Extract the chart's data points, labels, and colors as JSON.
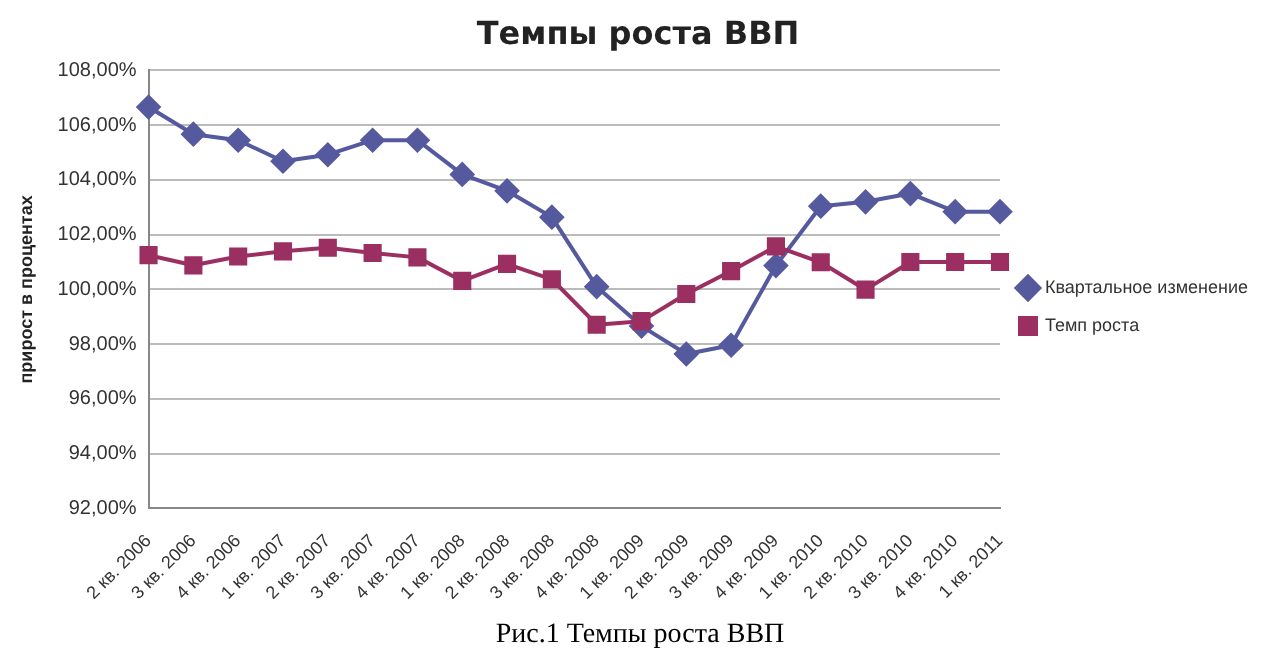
{
  "chart_data": {
    "type": "line",
    "title": "Темпы роста ВВП",
    "ylabel": "прирост в процентах",
    "categories": [
      "2 кв. 2006",
      "3 кв. 2006",
      "4 кв. 2006",
      "1 кв. 2007",
      "2 кв. 2007",
      "3 кв. 2007",
      "4 кв. 2007",
      "1 кв. 2008",
      "2 кв. 2008",
      "3 кв. 2008",
      "4 кв. 2008",
      "1 кв. 2009",
      "2 кв. 2009",
      "3 кв. 2009",
      "4 кв. 2009",
      "1 кв. 2010",
      "2 кв. 2010",
      "3 кв. 2010",
      "4 кв. 2010",
      "1 кв. 2011"
    ],
    "series": [
      {
        "name": "Квартальное изменение",
        "color": "#55599e",
        "marker": "diamond",
        "values": [
          106.66,
          105.67,
          105.45,
          104.68,
          104.92,
          105.45,
          105.45,
          104.2,
          103.6,
          102.64,
          100.1,
          98.66,
          97.64,
          97.96,
          100.87,
          103.04,
          103.2,
          103.5,
          102.84,
          102.84
        ]
      },
      {
        "name": "Темп роста",
        "color": "#9b2f62",
        "marker": "square",
        "values": [
          101.25,
          100.88,
          101.2,
          101.39,
          101.52,
          101.33,
          101.17,
          100.31,
          100.93,
          100.37,
          98.71,
          98.84,
          99.83,
          100.67,
          101.57,
          100.99,
          99.99,
          101.0,
          101.0,
          101.0
        ]
      }
    ],
    "ylim": [
      92,
      108
    ],
    "yticks": [
      {
        "value": 92,
        "label": "92,00%"
      },
      {
        "value": 94,
        "label": "94,00%"
      },
      {
        "value": 96,
        "label": "96,00%"
      },
      {
        "value": 98,
        "label": "98,00%"
      },
      {
        "value": 100,
        "label": "100,00%"
      },
      {
        "value": 102,
        "label": "102,00%"
      },
      {
        "value": 104,
        "label": "104,00%"
      },
      {
        "value": 106,
        "label": "106,00%"
      },
      {
        "value": 108,
        "label": "108,00%"
      }
    ],
    "grid": "y",
    "legend": "right",
    "line_style": "solid",
    "annotations": [
      "Рис.1 Темпы роста ВВП"
    ]
  }
}
